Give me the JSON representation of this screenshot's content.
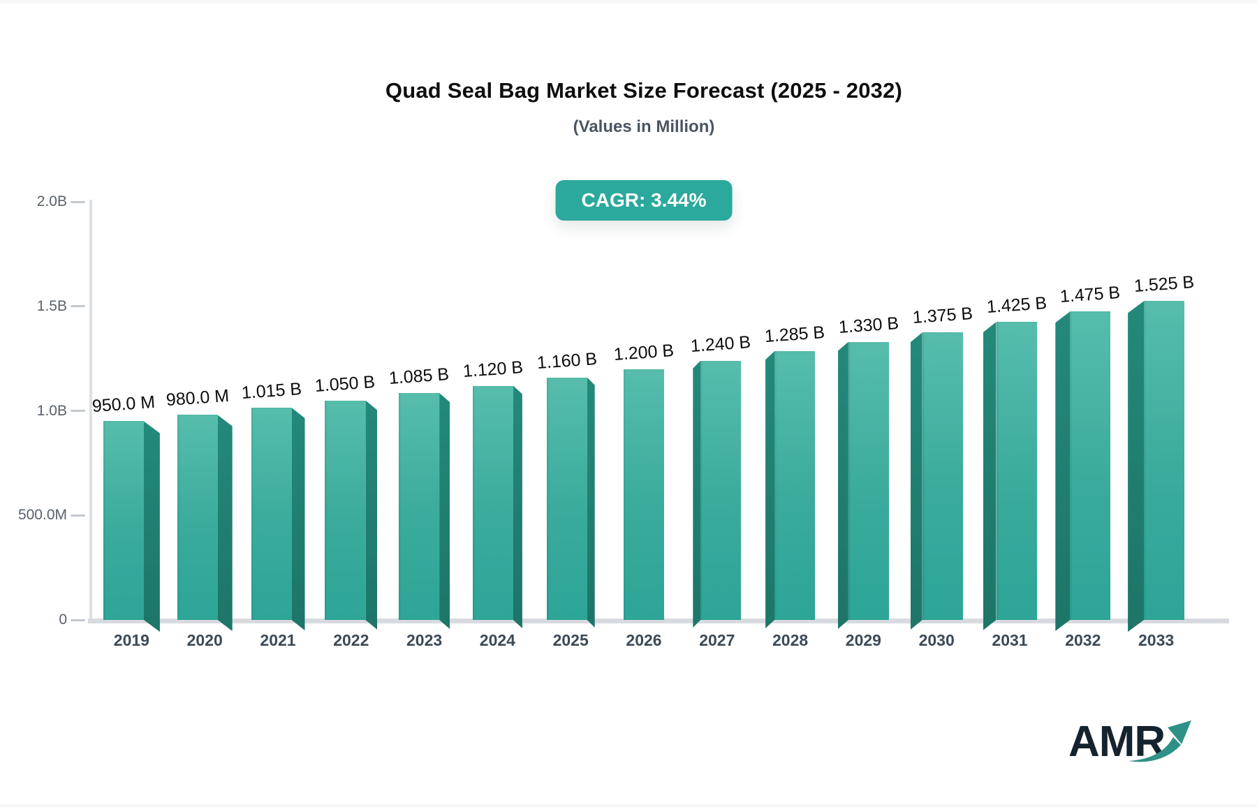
{
  "page": {
    "title": "Quad Seal Bag Market Size Forecast (2025 - 2032)",
    "subtitle": "(Values in Million)",
    "cagr_badge": "CAGR: 3.44%"
  },
  "logo": {
    "text": "AMR",
    "arrow_icon": "growth-arrow-icon",
    "arrow_color": "#2f9186",
    "text_color": "#15232e"
  },
  "chart_data": {
    "type": "bar",
    "title": "Quad Seal Bag Market Size Forecast (2025 - 2032)",
    "subtitle": "(Values in Million)",
    "cagr_percent": 3.44,
    "categories": [
      "2019",
      "2020",
      "2021",
      "2022",
      "2023",
      "2024",
      "2025",
      "2026",
      "2027",
      "2028",
      "2029",
      "2030",
      "2031",
      "2032",
      "2033"
    ],
    "values_billion": [
      0.95,
      0.98,
      1.015,
      1.05,
      1.085,
      1.12,
      1.16,
      1.2,
      1.24,
      1.285,
      1.33,
      1.375,
      1.425,
      1.475,
      1.525
    ],
    "value_labels": [
      "950.0 M",
      "980.0 M",
      "1.015 B",
      "1.050 B",
      "1.085 B",
      "1.120 B",
      "1.160 B",
      "1.200 B",
      "1.240 B",
      "1.285 B",
      "1.330 B",
      "1.375 B",
      "1.425 B",
      "1.475 B",
      "1.525 B"
    ],
    "y_ticks": [
      {
        "label": "2.0B",
        "value": 2.0
      },
      {
        "label": "1.5B",
        "value": 1.5
      },
      {
        "label": "1.0B",
        "value": 1.0
      },
      {
        "label": "500.0M",
        "value": 0.5
      },
      {
        "label": "0",
        "value": 0
      }
    ],
    "ylim": [
      0,
      2.0
    ],
    "xlabel": "",
    "ylabel": "",
    "grid": false,
    "legend": false,
    "bar_style": "3d-extruded",
    "colors": {
      "bar_face_top": "#57bdad",
      "bar_face_bottom": "#2da597",
      "bar_side": "#1f7e71",
      "accent": "#2aa99c",
      "axis_line": "#d7dadf",
      "tick_text": "#59616d",
      "category_text": "#3c4956",
      "value_text": "#0c0d0e"
    }
  }
}
